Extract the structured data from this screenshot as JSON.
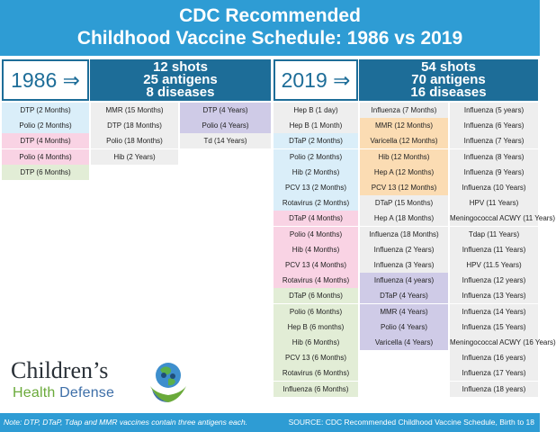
{
  "header": {
    "title_line1": "CDC Recommended",
    "title_line2": "Childhood Vaccine Schedule: 1986 vs 2019"
  },
  "y1986": {
    "year": "1986 ⇒",
    "shots": "12 shots",
    "antigens": "25 antigens",
    "diseases": "8 diseases",
    "columns": [
      [
        "DTP (2 Months)",
        "Polio (2 Months)",
        "DTP (4 Months)",
        "Polio (4 Months)",
        "DTP (6 Months)"
      ],
      [
        "MMR (15 Months)",
        "DTP (18 Months)",
        "Polio (18 Months)",
        "Hib (2 Years)"
      ],
      [
        "DTP (4 Years)",
        "Polio (4 Years)",
        "Td (14 Years)"
      ]
    ]
  },
  "y2019": {
    "year": "2019 ⇒",
    "shots": "54 shots",
    "antigens": "70 antigens",
    "diseases": "16 diseases",
    "columns": [
      [
        "Hep B (1 day)",
        "Hep B (1 Month)",
        "DTaP (2 Months)",
        "Polio (2 Months)",
        "Hib (2 Months)",
        "PCV 13 (2 Months)",
        "Rotavirus (2 Months)",
        "DTaP (4 Months)",
        "Polio (4 Months)",
        "Hib (4 Months)",
        "PCV 13 (4 Months)",
        "Rotavirus (4 Months)",
        "DTaP (6 Months)",
        "Polio (6 Months)",
        "Hep B (6 months)",
        "Hib (6 Months)",
        "PCV 13 (6 Months)",
        "Rotavirus (6 Months)",
        "Influenza (6 Months)"
      ],
      [
        "Influenza (7 Months)",
        "MMR (12 Months)",
        "Varicella (12 Months)",
        "Hib (12 Months)",
        "Hep A (12 Months)",
        "PCV 13 (12 Months)",
        "DTaP (15 Months)",
        "Hep A (18 Months)",
        "Influenza (18 Months)",
        "Influenza (2 Years)",
        "Influenza (3 Years)",
        "Influenza (4 years)",
        "DTaP (4 Years)",
        "MMR (4 Years)",
        "Polio (4 Years)",
        "Varicella (4 Years)"
      ],
      [
        "Influenza (5 years)",
        "Influenza (6 Years)",
        "Influenza (7 Years)",
        "Influenza (8 Years)",
        "Influenza (9 Years)",
        "Influenza (10 Years)",
        "HPV (11 Years)",
        "Meningococcal ACWY (11 Years)",
        "Tdap (11 Years)",
        "Influenza (11 Years)",
        "HPV (11.5 Years)",
        "Influenza (12 years)",
        "Influenza (13 Years)",
        "Influenza (14 Years)",
        "Influenza (15 Years)",
        "Meningococcal ACWY (16 Years)",
        "Influenza (16 years)",
        "Influenza (17 Years)",
        "Influenza (18 years)"
      ]
    ]
  },
  "logo": {
    "line1": "Children’s",
    "line2a": "Health",
    "line2b": " Defense"
  },
  "footer": {
    "note": "Note: DTP, DTaP, Tdap and MMR vaccines contain three antigens each.",
    "source": "SOURCE: CDC Recommended Childhood Vaccine Schedule, Birth to 18"
  },
  "colors": {
    "header_blue": "#2e9cd4",
    "stats_dark_blue": "#1d6d98",
    "age_2_months": "#daeef9",
    "age_4_months": "#f9d3e4",
    "age_6_months": "#e2edd6",
    "age_12_months": "#fbdcb3",
    "age_4_years": "#cfcbe7",
    "other": "#eeeeee"
  }
}
